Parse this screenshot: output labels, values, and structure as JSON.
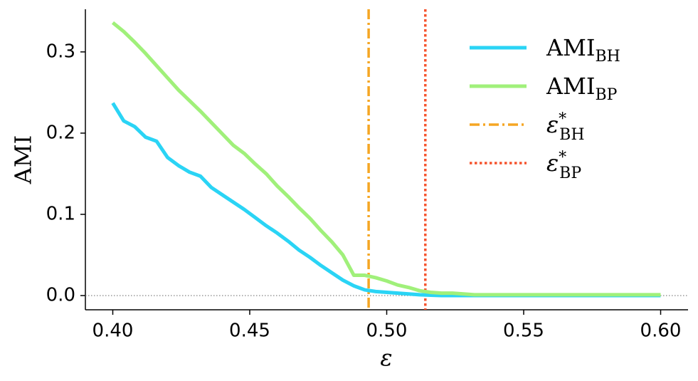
{
  "chart_data": {
    "type": "line",
    "xlabel": "ε",
    "ylabel": "AMI",
    "x": [
      0.4,
      0.404,
      0.408,
      0.412,
      0.416,
      0.42,
      0.424,
      0.428,
      0.432,
      0.436,
      0.44,
      0.444,
      0.448,
      0.452,
      0.456,
      0.46,
      0.464,
      0.468,
      0.472,
      0.476,
      0.48,
      0.484,
      0.488,
      0.492,
      0.496,
      0.5,
      0.504,
      0.508,
      0.512,
      0.516,
      0.52,
      0.524,
      0.528,
      0.532,
      0.536,
      0.54,
      0.544,
      0.548,
      0.552,
      0.556,
      0.56,
      0.564,
      0.568,
      0.572,
      0.576,
      0.58,
      0.584,
      0.588,
      0.592,
      0.596,
      0.6
    ],
    "series": [
      {
        "name": "AMI_BH",
        "color": "#2ad4f5",
        "values": [
          0.237,
          0.215,
          0.208,
          0.195,
          0.19,
          0.17,
          0.16,
          0.152,
          0.147,
          0.133,
          0.124,
          0.115,
          0.106,
          0.096,
          0.086,
          0.077,
          0.067,
          0.056,
          0.047,
          0.037,
          0.028,
          0.019,
          0.012,
          0.007,
          0.005,
          0.004,
          0.003,
          0.002,
          0.001,
          0.0005,
          0,
          0,
          0,
          0,
          0,
          0,
          0,
          0,
          0,
          0,
          0,
          0,
          0,
          0,
          0,
          0,
          0,
          0,
          0,
          0,
          0
        ]
      },
      {
        "name": "AMI_BP",
        "color": "#a0f07a",
        "values": [
          0.336,
          0.325,
          0.312,
          0.298,
          0.283,
          0.268,
          0.253,
          0.24,
          0.227,
          0.213,
          0.199,
          0.185,
          0.175,
          0.162,
          0.15,
          0.135,
          0.122,
          0.108,
          0.095,
          0.08,
          0.066,
          0.05,
          0.025,
          0.025,
          0.022,
          0.018,
          0.013,
          0.01,
          0.006,
          0.004,
          0.003,
          0.003,
          0.002,
          0.001,
          0.001,
          0.001,
          0.001,
          0.001,
          0.001,
          0.001,
          0.001,
          0.001,
          0.001,
          0.001,
          0.001,
          0.001,
          0.001,
          0.001,
          0.001,
          0.001,
          0.001
        ]
      }
    ],
    "vlines": [
      {
        "name": "ε*_BH",
        "x": 0.4934,
        "color": "#f5a623",
        "style": "dashdot"
      },
      {
        "name": "ε*_BP",
        "x": 0.5141,
        "color": "#f5532d",
        "style": "dotted"
      }
    ],
    "hline": 0,
    "xlim": [
      0.39,
      0.61
    ],
    "ylim": [
      -0.0175,
      0.3525
    ],
    "xticks": [
      {
        "value": 0.4,
        "label": "0.40"
      },
      0.45,
      {
        "value": 0.5,
        "label": "0.50"
      },
      0.55,
      {
        "value": 0.6,
        "label": "0.60"
      }
    ],
    "yticks": [
      {
        "value": 0,
        "label": "0.0"
      },
      0.1,
      0.2,
      0.3
    ],
    "legend": "upper right"
  }
}
